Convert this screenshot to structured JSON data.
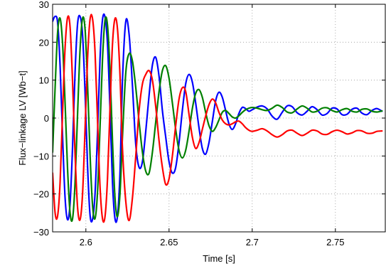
{
  "chart_data": {
    "type": "line",
    "xlabel": "Time [s]",
    "ylabel": "Flux−linkage LV [Wb−t]",
    "xlim": [
      2.58,
      2.78
    ],
    "ylim": [
      -30,
      30
    ],
    "xticks": [
      2.6,
      2.65,
      2.7,
      2.75
    ],
    "xtick_labels": [
      "2.6",
      "2.65",
      "2.7",
      "2.75"
    ],
    "yticks": [
      -30,
      -20,
      -10,
      0,
      10,
      20,
      30
    ],
    "ytick_labels": [
      "−30",
      "−20",
      "−10",
      "0",
      "10",
      "20",
      "30"
    ],
    "grid": true,
    "series": [
      {
        "color": "#0000ff",
        "x": [
          2.58,
          2.5815,
          2.583,
          2.5845,
          2.586,
          2.5875,
          2.589,
          2.5905,
          2.592,
          2.5935,
          2.595,
          2.5965,
          2.598,
          2.5995,
          2.601,
          2.6025,
          2.604,
          2.6055,
          2.607,
          2.6085,
          2.61,
          2.6115,
          2.613,
          2.6145,
          2.616,
          2.6175,
          2.619,
          2.6205,
          2.622,
          2.624,
          2.626,
          2.628,
          2.63,
          2.632,
          2.634,
          2.636,
          2.638,
          2.64,
          2.642,
          2.644,
          2.646,
          2.648,
          2.65,
          2.652,
          2.654,
          2.656,
          2.658,
          2.66,
          2.662,
          2.664,
          2.666,
          2.668,
          2.67,
          2.672,
          2.674,
          2.676,
          2.678,
          2.68,
          2.682,
          2.684,
          2.686,
          2.688,
          2.69,
          2.692,
          2.694,
          2.696,
          2.698,
          2.7,
          2.703,
          2.706,
          2.709,
          2.712,
          2.715,
          2.718,
          2.721,
          2.724,
          2.727,
          2.73,
          2.733,
          2.736,
          2.739,
          2.742,
          2.745,
          2.748,
          2.751,
          2.754,
          2.757,
          2.76,
          2.763,
          2.766,
          2.769,
          2.772,
          2.775,
          2.778
        ],
        "y": [
          25.5,
          26.8,
          25.2,
          13.8,
          -5.0,
          -21.0,
          -26.8,
          -22.5,
          -7.5,
          12.0,
          24.8,
          26.8,
          22.0,
          7.0,
          -12.5,
          -25.5,
          -26.7,
          -20.0,
          -4.0,
          15.5,
          26.0,
          26.6,
          19.5,
          2.5,
          -17.0,
          -26.5,
          -25.8,
          -14.5,
          10.0,
          25.5,
          22.0,
          8.5,
          -7.0,
          -13.0,
          -11.5,
          -3.5,
          6.0,
          14.0,
          16.0,
          11.0,
          2.0,
          -5.0,
          -11.5,
          -14.5,
          -13.0,
          -6.5,
          2.0,
          9.0,
          11.5,
          9.5,
          4.0,
          -2.5,
          -8.0,
          -9.5,
          -6.5,
          -1.0,
          4.5,
          6.8,
          5.5,
          2.0,
          -1.5,
          -3.0,
          -1.5,
          1.2,
          2.8,
          2.5,
          1.8,
          2.2,
          2.9,
          3.2,
          2.4,
          0.5,
          -0.3,
          1.5,
          3.2,
          3.0,
          1.4,
          0.8,
          1.8,
          3.0,
          2.2,
          0.8,
          1.2,
          2.6,
          2.4,
          0.9,
          1.0,
          2.3,
          2.6,
          1.3,
          0.9,
          2.0,
          2.5,
          1.8
        ]
      },
      {
        "color": "#008000",
        "x": [
          2.58,
          2.5815,
          2.583,
          2.5845,
          2.586,
          2.5875,
          2.589,
          2.5905,
          2.592,
          2.5935,
          2.595,
          2.5965,
          2.598,
          2.5995,
          2.601,
          2.6025,
          2.604,
          2.6055,
          2.607,
          2.6085,
          2.61,
          2.6115,
          2.613,
          2.6145,
          2.616,
          2.6175,
          2.619,
          2.6205,
          2.622,
          2.624,
          2.626,
          2.628,
          2.63,
          2.632,
          2.634,
          2.636,
          2.638,
          2.64,
          2.642,
          2.644,
          2.646,
          2.648,
          2.65,
          2.652,
          2.654,
          2.656,
          2.658,
          2.66,
          2.662,
          2.664,
          2.666,
          2.668,
          2.67,
          2.672,
          2.674,
          2.676,
          2.678,
          2.68,
          2.682,
          2.684,
          2.686,
          2.688,
          2.69,
          2.692,
          2.694,
          2.696,
          2.698,
          2.7,
          2.703,
          2.706,
          2.709,
          2.712,
          2.715,
          2.718,
          2.721,
          2.724,
          2.727,
          2.73,
          2.733,
          2.736,
          2.739,
          2.742,
          2.745,
          2.748,
          2.751,
          2.754,
          2.757,
          2.76,
          2.763,
          2.766,
          2.769,
          2.772,
          2.775,
          2.778
        ],
        "y": [
          -9.0,
          8.0,
          22.5,
          26.3,
          19.5,
          4.0,
          -13.5,
          -25.0,
          -26.5,
          -17.0,
          1.0,
          18.0,
          26.3,
          23.5,
          9.0,
          -9.5,
          -23.0,
          -26.5,
          -19.5,
          -2.5,
          15.5,
          25.8,
          24.5,
          12.5,
          -6.0,
          -21.0,
          -26.0,
          -20.0,
          -5.0,
          12.0,
          17.0,
          15.0,
          8.0,
          -1.0,
          -9.0,
          -14.0,
          -14.5,
          -9.0,
          -1.0,
          7.0,
          12.5,
          13.8,
          10.5,
          4.0,
          -3.0,
          -8.5,
          -10.5,
          -8.5,
          -3.5,
          2.5,
          6.5,
          7.5,
          5.5,
          1.5,
          -2.0,
          -3.5,
          -2.5,
          -0.5,
          1.5,
          2.0,
          1.2,
          0.3,
          0.0,
          0.6,
          1.5,
          2.2,
          2.6,
          2.8,
          2.6,
          2.2,
          2.0,
          2.6,
          3.4,
          2.8,
          1.6,
          1.4,
          2.4,
          3.2,
          2.6,
          1.6,
          1.8,
          2.6,
          2.7,
          2.0,
          1.6,
          2.2,
          2.5,
          1.8,
          1.6,
          2.3,
          2.4,
          1.8,
          1.6,
          1.9
        ]
      },
      {
        "color": "#ff0000",
        "x": [
          2.58,
          2.5815,
          2.583,
          2.5845,
          2.586,
          2.5875,
          2.589,
          2.5905,
          2.592,
          2.5935,
          2.595,
          2.5965,
          2.598,
          2.5995,
          2.601,
          2.6025,
          2.604,
          2.6055,
          2.607,
          2.6085,
          2.61,
          2.6115,
          2.613,
          2.6145,
          2.616,
          2.6175,
          2.619,
          2.6205,
          2.622,
          2.624,
          2.626,
          2.628,
          2.63,
          2.632,
          2.634,
          2.636,
          2.638,
          2.64,
          2.642,
          2.644,
          2.646,
          2.648,
          2.65,
          2.652,
          2.654,
          2.656,
          2.658,
          2.66,
          2.662,
          2.664,
          2.666,
          2.668,
          2.67,
          2.672,
          2.674,
          2.676,
          2.678,
          2.68,
          2.682,
          2.684,
          2.686,
          2.688,
          2.69,
          2.692,
          2.694,
          2.696,
          2.698,
          2.7,
          2.703,
          2.706,
          2.709,
          2.712,
          2.715,
          2.718,
          2.721,
          2.724,
          2.727,
          2.73,
          2.733,
          2.736,
          2.739,
          2.742,
          2.745,
          2.748,
          2.751,
          2.754,
          2.757,
          2.76,
          2.763,
          2.766,
          2.769,
          2.772,
          2.775,
          2.778
        ],
        "y": [
          -14.5,
          -25.0,
          -25.8,
          -17.0,
          1.5,
          18.5,
          26.5,
          24.0,
          9.5,
          -9.5,
          -23.5,
          -26.8,
          -20.0,
          -3.0,
          15.5,
          26.0,
          26.2,
          17.5,
          -0.5,
          -18.0,
          -26.5,
          -26.0,
          -16.0,
          2.5,
          19.5,
          26.2,
          23.5,
          11.5,
          -8.0,
          -22.0,
          -27.0,
          -21.0,
          -10.0,
          2.0,
          9.0,
          11.5,
          12.5,
          10.0,
          3.0,
          -6.0,
          -13.0,
          -17.5,
          -16.0,
          -10.0,
          -2.0,
          5.0,
          8.0,
          7.0,
          1.0,
          -5.0,
          -8.0,
          -6.5,
          -3.0,
          0.5,
          3.5,
          5.0,
          4.0,
          1.5,
          -0.5,
          -1.5,
          -1.8,
          -1.5,
          -1.0,
          -0.8,
          -1.5,
          -2.5,
          -3.2,
          -3.5,
          -3.2,
          -2.8,
          -3.4,
          -4.4,
          -5.0,
          -4.4,
          -3.4,
          -3.2,
          -4.0,
          -4.6,
          -4.0,
          -3.2,
          -3.4,
          -4.2,
          -4.3,
          -3.6,
          -3.2,
          -3.6,
          -4.2,
          -3.9,
          -3.3,
          -3.4,
          -4.0,
          -4.0,
          -3.5,
          -3.4
        ]
      }
    ]
  }
}
